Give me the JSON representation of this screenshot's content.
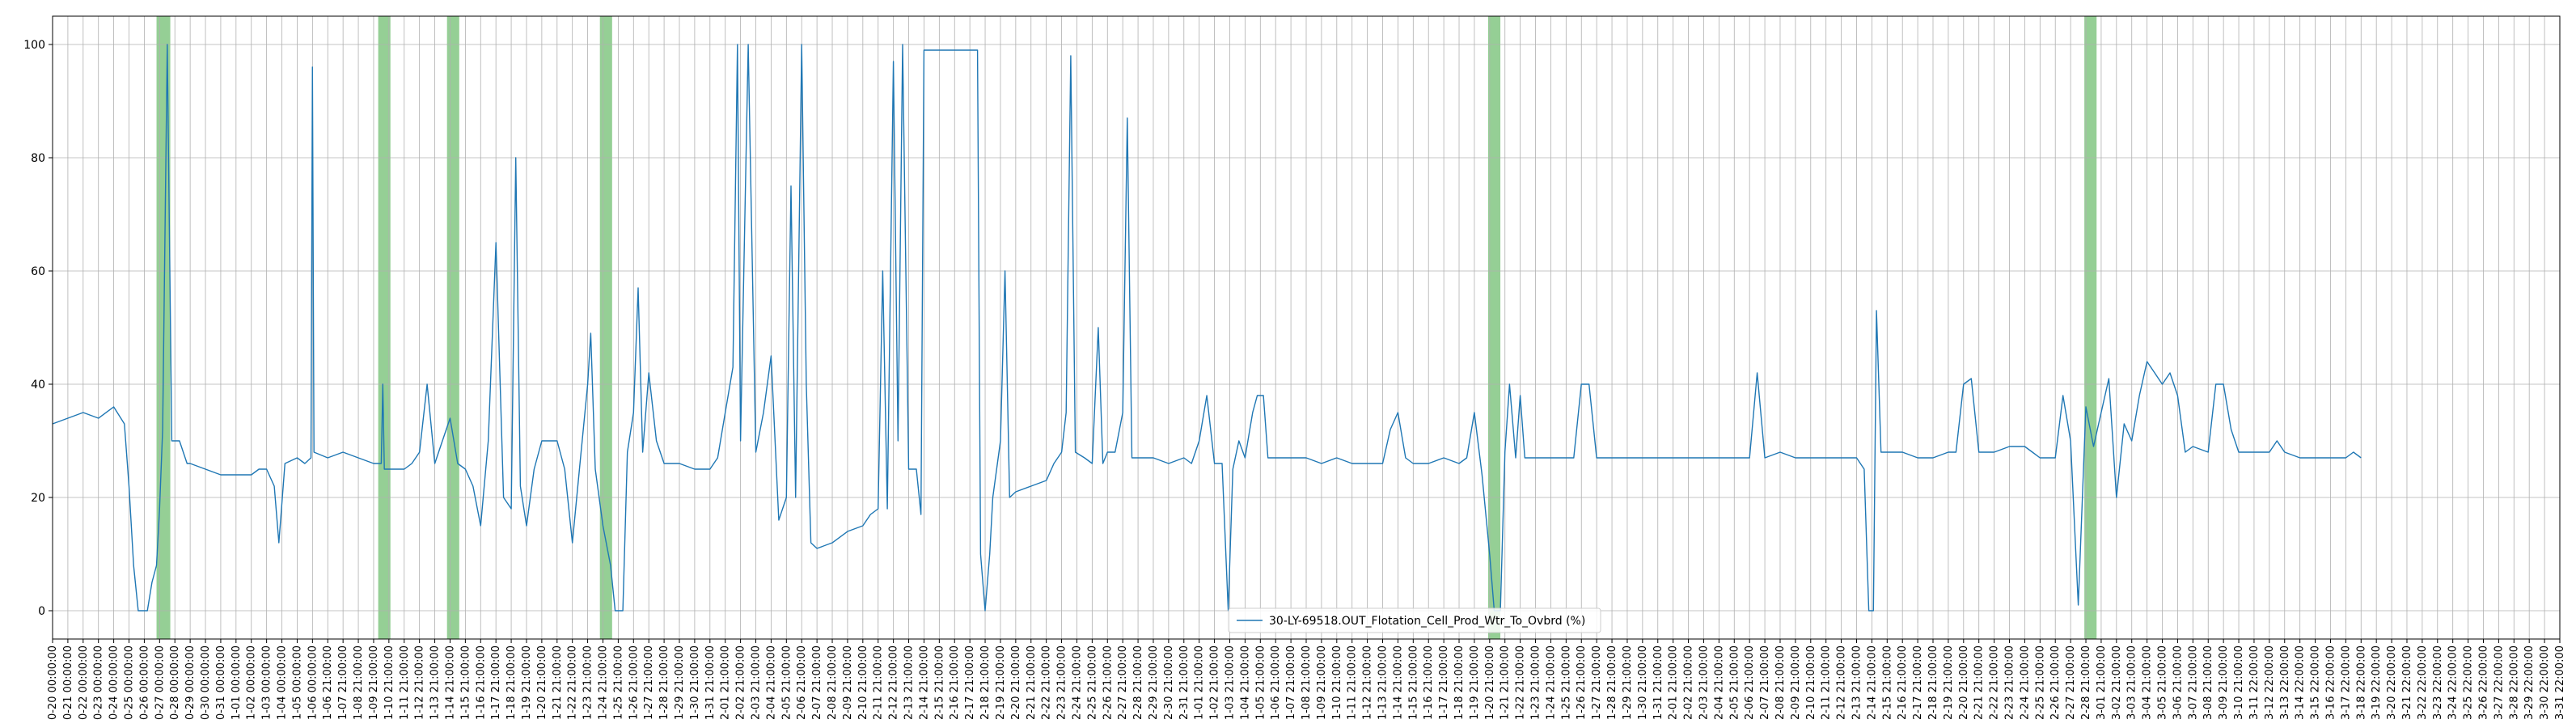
{
  "chart_data": {
    "type": "line",
    "title": "",
    "xlabel": "",
    "ylabel": "",
    "ylim": [
      -5,
      105
    ],
    "yticks": [
      0,
      20,
      40,
      60,
      80,
      100
    ],
    "grid": true,
    "legend_position": "lower-center",
    "colors": {
      "line": "#1f77b4",
      "highlight": "#2ca02c",
      "grid": "#b0b0b0"
    },
    "series": [
      {
        "name": "30-LY-69518.OUT_Flotation_Cell_Prod_Wtr_To_Ovbrd (%)",
        "points": [
          [
            0,
            33
          ],
          [
            1,
            34
          ],
          [
            2,
            35
          ],
          [
            3,
            34
          ],
          [
            4,
            36
          ],
          [
            4.7,
            33
          ],
          [
            5.0,
            22
          ],
          [
            5.3,
            8
          ],
          [
            5.6,
            0
          ],
          [
            6.2,
            0
          ],
          [
            6.5,
            5
          ],
          [
            6.8,
            8
          ],
          [
            7.0,
            18
          ],
          [
            7.2,
            32
          ],
          [
            7.5,
            100
          ],
          [
            7.8,
            30
          ],
          [
            8.3,
            30
          ],
          [
            8.8,
            26
          ],
          [
            9,
            26
          ],
          [
            10,
            25
          ],
          [
            11,
            24
          ],
          [
            12,
            24
          ],
          [
            13,
            24
          ],
          [
            13.5,
            25
          ],
          [
            14,
            25
          ],
          [
            14.5,
            22
          ],
          [
            14.8,
            12
          ],
          [
            15.2,
            26
          ],
          [
            16,
            27
          ],
          [
            16.5,
            26
          ],
          [
            16.9,
            27
          ],
          [
            17.0,
            96
          ],
          [
            17.1,
            28
          ],
          [
            18,
            27
          ],
          [
            19,
            28
          ],
          [
            20,
            27
          ],
          [
            21,
            26
          ],
          [
            21.5,
            26
          ],
          [
            21.6,
            40
          ],
          [
            21.7,
            25
          ],
          [
            22,
            25
          ],
          [
            23,
            25
          ],
          [
            23.5,
            26
          ],
          [
            24,
            28
          ],
          [
            24.5,
            40
          ],
          [
            25,
            26
          ],
          [
            25.5,
            30
          ],
          [
            26,
            34
          ],
          [
            26.5,
            26
          ],
          [
            27,
            25
          ],
          [
            27.5,
            22
          ],
          [
            28,
            15
          ],
          [
            28.5,
            30
          ],
          [
            29,
            65
          ],
          [
            29.5,
            20
          ],
          [
            30,
            18
          ],
          [
            30.3,
            80
          ],
          [
            30.6,
            22
          ],
          [
            31,
            15
          ],
          [
            31.5,
            25
          ],
          [
            32,
            30
          ],
          [
            33,
            30
          ],
          [
            33.5,
            25
          ],
          [
            34,
            12
          ],
          [
            34.5,
            26
          ],
          [
            35,
            40
          ],
          [
            35.2,
            49
          ],
          [
            35.5,
            25
          ],
          [
            36,
            15
          ],
          [
            36.5,
            8
          ],
          [
            36.8,
            0
          ],
          [
            37.3,
            0
          ],
          [
            37.6,
            28
          ],
          [
            38,
            35
          ],
          [
            38.3,
            57
          ],
          [
            38.6,
            28
          ],
          [
            39,
            42
          ],
          [
            39.5,
            30
          ],
          [
            40,
            26
          ],
          [
            41,
            26
          ],
          [
            42,
            25
          ],
          [
            43,
            25
          ],
          [
            43.5,
            27
          ],
          [
            44,
            35
          ],
          [
            44.5,
            43
          ],
          [
            44.8,
            100
          ],
          [
            45,
            30
          ],
          [
            45.5,
            100
          ],
          [
            46,
            28
          ],
          [
            46.5,
            35
          ],
          [
            47,
            45
          ],
          [
            47.5,
            16
          ],
          [
            48,
            20
          ],
          [
            48.3,
            75
          ],
          [
            48.6,
            20
          ],
          [
            49,
            100
          ],
          [
            49.3,
            40
          ],
          [
            49.6,
            12
          ],
          [
            50,
            11
          ],
          [
            51,
            12
          ],
          [
            52,
            14
          ],
          [
            53,
            15
          ],
          [
            53.5,
            17
          ],
          [
            54,
            18
          ],
          [
            54.3,
            60
          ],
          [
            54.6,
            18
          ],
          [
            55,
            97
          ],
          [
            55.3,
            30
          ],
          [
            55.6,
            100
          ],
          [
            56,
            25
          ],
          [
            56.5,
            25
          ],
          [
            56.8,
            17
          ],
          [
            57.0,
            99
          ],
          [
            60.0,
            99
          ],
          [
            60.5,
            99
          ],
          [
            60.7,
            10
          ],
          [
            61,
            0
          ],
          [
            61.3,
            10
          ],
          [
            61.5,
            20
          ],
          [
            62,
            30
          ],
          [
            62.3,
            60
          ],
          [
            62.6,
            20
          ],
          [
            63,
            21
          ],
          [
            64,
            22
          ],
          [
            65,
            23
          ],
          [
            65.5,
            26
          ],
          [
            66,
            28
          ],
          [
            66.3,
            35
          ],
          [
            66.6,
            98
          ],
          [
            66.9,
            28
          ],
          [
            67.5,
            27
          ],
          [
            68,
            26
          ],
          [
            68.4,
            50
          ],
          [
            68.7,
            26
          ],
          [
            69,
            28
          ],
          [
            69.5,
            28
          ],
          [
            70,
            35
          ],
          [
            70.3,
            87
          ],
          [
            70.6,
            27
          ],
          [
            71,
            27
          ],
          [
            72,
            27
          ],
          [
            73,
            26
          ],
          [
            74,
            27
          ],
          [
            74.5,
            26
          ],
          [
            75,
            30
          ],
          [
            75.5,
            38
          ],
          [
            76,
            26
          ],
          [
            76.5,
            26
          ],
          [
            76.9,
            0
          ],
          [
            77.2,
            25
          ],
          [
            77.6,
            30
          ],
          [
            78,
            27
          ],
          [
            78.5,
            35
          ],
          [
            78.8,
            38
          ],
          [
            79.2,
            38
          ],
          [
            79.5,
            27
          ],
          [
            80,
            27
          ],
          [
            81,
            27
          ],
          [
            82,
            27
          ],
          [
            83,
            26
          ],
          [
            84,
            27
          ],
          [
            85,
            26
          ],
          [
            86,
            26
          ],
          [
            87,
            26
          ],
          [
            87.5,
            32
          ],
          [
            88,
            35
          ],
          [
            88.5,
            27
          ],
          [
            89,
            26
          ],
          [
            90,
            26
          ],
          [
            91,
            27
          ],
          [
            92,
            26
          ],
          [
            92.5,
            27
          ],
          [
            93,
            35
          ],
          [
            93.5,
            24
          ],
          [
            94,
            10
          ],
          [
            94.3,
            0
          ],
          [
            94.7,
            0
          ],
          [
            95,
            28
          ],
          [
            95.3,
            40
          ],
          [
            95.7,
            27
          ],
          [
            96,
            38
          ],
          [
            96.3,
            27
          ],
          [
            97,
            27
          ],
          [
            98,
            27
          ],
          [
            99,
            27
          ],
          [
            99.5,
            27
          ],
          [
            100,
            40
          ],
          [
            100.5,
            40
          ],
          [
            101,
            27
          ],
          [
            102,
            27
          ],
          [
            103,
            27
          ],
          [
            104,
            27
          ],
          [
            105,
            27
          ],
          [
            106,
            27
          ],
          [
            107,
            27
          ],
          [
            108,
            27
          ],
          [
            109,
            27
          ],
          [
            110,
            27
          ],
          [
            111,
            27
          ],
          [
            111.5,
            42
          ],
          [
            112,
            27
          ],
          [
            113,
            28
          ],
          [
            114,
            27
          ],
          [
            115,
            27
          ],
          [
            116,
            27
          ],
          [
            117,
            27
          ],
          [
            118,
            27
          ],
          [
            118.5,
            25
          ],
          [
            118.8,
            0
          ],
          [
            119.1,
            0
          ],
          [
            119.3,
            53
          ],
          [
            119.6,
            28
          ],
          [
            120,
            28
          ],
          [
            121,
            28
          ],
          [
            122,
            27
          ],
          [
            123,
            27
          ],
          [
            124,
            28
          ],
          [
            124.5,
            28
          ],
          [
            125,
            40
          ],
          [
            125.5,
            41
          ],
          [
            126,
            28
          ],
          [
            127,
            28
          ],
          [
            128,
            29
          ],
          [
            129,
            29
          ],
          [
            129.5,
            28
          ],
          [
            130,
            27
          ],
          [
            131,
            27
          ],
          [
            131.5,
            38
          ],
          [
            132,
            30
          ],
          [
            132.5,
            1
          ],
          [
            133,
            36
          ],
          [
            133.5,
            29
          ],
          [
            134,
            35
          ],
          [
            134.5,
            41
          ],
          [
            135,
            20
          ],
          [
            135.5,
            33
          ],
          [
            136,
            30
          ],
          [
            136.5,
            38
          ],
          [
            137,
            44
          ],
          [
            137.5,
            42
          ],
          [
            138,
            40
          ],
          [
            138.5,
            42
          ],
          [
            139,
            38
          ],
          [
            139.5,
            28
          ],
          [
            140,
            29
          ],
          [
            141,
            28
          ],
          [
            141.5,
            40
          ],
          [
            142,
            40
          ],
          [
            142.5,
            32
          ],
          [
            143,
            28
          ],
          [
            144,
            28
          ],
          [
            145,
            28
          ],
          [
            145.5,
            30
          ],
          [
            146,
            28
          ],
          [
            147,
            27
          ],
          [
            148,
            27
          ],
          [
            149,
            27
          ],
          [
            150,
            27
          ],
          [
            150.5,
            28
          ],
          [
            151,
            27
          ]
        ]
      }
    ],
    "highlight_bands": [
      [
        6.8,
        7.7
      ],
      [
        21.3,
        22.1
      ],
      [
        25.8,
        26.6
      ],
      [
        35.8,
        36.6
      ],
      [
        93.9,
        94.7
      ],
      [
        132.9,
        133.7
      ]
    ],
    "xtick_labels": [
      "0-20 00:00:00",
      "0-21 00:00:00",
      "0-22 00:00:00",
      "0-23 00:00:00",
      "0-24 00:00:00",
      "0-25 00:00:00",
      "0-26 00:00:00",
      "0-27 00:00:00",
      "0-28 00:00:00",
      "0-29 00:00:00",
      "0-30 00:00:00",
      "0-31 00:00:00",
      "1-01 00:00:00",
      "1-02 00:00:00",
      "1-03 00:00:00",
      "1-04 00:00:00",
      "1-05 00:00:00",
      "1-06 00:00:00",
      "1-06 21:00:00",
      "1-07 21:00:00",
      "1-08 21:00:00",
      "1-09 21:00:00",
      "1-10 21:00:00",
      "1-11 21:00:00",
      "1-12 21:00:00",
      "1-13 21:00:00",
      "1-14 21:00:00",
      "1-15 21:00:00",
      "1-16 21:00:00",
      "1-17 21:00:00",
      "1-18 21:00:00",
      "1-19 21:00:00",
      "1-20 21:00:00",
      "1-21 21:00:00",
      "1-22 21:00:00",
      "1-23 21:00:00",
      "1-24 21:00:00",
      "1-25 21:00:00",
      "1-26 21:00:00",
      "1-27 21:00:00",
      "1-28 21:00:00",
      "1-29 21:00:00",
      "1-30 21:00:00",
      "1-31 21:00:00",
      "2-01 21:00:00",
      "2-02 21:00:00",
      "2-03 21:00:00",
      "2-04 21:00:00",
      "2-05 21:00:00",
      "2-06 21:00:00",
      "2-07 21:00:00",
      "2-08 21:00:00",
      "2-09 21:00:00",
      "2-10 21:00:00",
      "2-11 21:00:00",
      "2-12 21:00:00",
      "2-13 21:00:00",
      "2-14 21:00:00",
      "2-15 21:00:00",
      "2-16 21:00:00",
      "2-17 21:00:00",
      "2-18 21:00:00",
      "2-19 21:00:00",
      "2-20 21:00:00",
      "2-21 21:00:00",
      "2-22 21:00:00",
      "2-23 21:00:00",
      "2-24 21:00:00",
      "2-25 21:00:00",
      "2-26 21:00:00",
      "2-27 21:00:00",
      "2-28 21:00:00",
      "2-29 21:00:00",
      "2-30 21:00:00",
      "2-31 21:00:00",
      "1-01 21:00:00",
      "1-02 21:00:00",
      "1-03 21:00:00",
      "1-04 21:00:00",
      "1-05 21:00:00",
      "1-06 21:00:00",
      "1-07 21:00:00",
      "1-08 21:00:00",
      "1-09 21:00:00",
      "1-10 21:00:00",
      "1-11 21:00:00",
      "1-12 21:00:00",
      "1-13 21:00:00",
      "1-14 21:00:00",
      "1-15 21:00:00",
      "1-16 21:00:00",
      "1-17 21:00:00",
      "1-18 21:00:00",
      "1-19 21:00:00",
      "1-20 21:00:00",
      "1-21 21:00:00",
      "1-22 21:00:00",
      "1-23 21:00:00",
      "1-24 21:00:00",
      "1-25 21:00:00",
      "1-26 21:00:00",
      "1-27 21:00:00",
      "1-28 21:00:00",
      "1-29 21:00:00",
      "1-30 21:00:00",
      "1-31 21:00:00",
      "2-01 21:00:00",
      "2-02 21:00:00",
      "2-03 21:00:00",
      "2-04 21:00:00",
      "2-05 21:00:00",
      "2-06 21:00:00",
      "2-07 21:00:00",
      "2-08 21:00:00",
      "2-09 21:00:00",
      "2-10 21:00:00",
      "2-11 21:00:00",
      "2-12 21:00:00",
      "2-13 21:00:00",
      "2-14 21:00:00",
      "2-15 21:00:00",
      "2-16 21:00:00",
      "2-17 21:00:00",
      "2-18 21:00:00",
      "2-19 21:00:00",
      "2-20 21:00:00",
      "2-21 21:00:00",
      "2-22 21:00:00",
      "2-23 21:00:00",
      "2-24 21:00:00",
      "2-25 21:00:00",
      "2-26 21:00:00",
      "2-27 21:00:00",
      "2-28 21:00:00",
      "3-01 21:00:00",
      "3-02 21:00:00",
      "3-03 21:00:00",
      "3-04 21:00:00",
      "3-05 21:00:00",
      "3-06 21:00:00",
      "3-07 21:00:00",
      "3-08 21:00:00",
      "3-09 21:00:00",
      "3-10 21:00:00",
      "3-11 22:00:00",
      "3-12 22:00:00",
      "3-13 22:00:00",
      "3-14 22:00:00",
      "3-15 22:00:00",
      "3-16 22:00:00",
      "3-17 22:00:00",
      "3-18 22:00:00",
      "3-19 22:00:00",
      "3-20 22:00:00",
      "3-21 22:00:00",
      "3-22 22:00:00",
      "3-23 22:00:00",
      "3-24 22:00:00",
      "3-25 22:00:00",
      "3-26 22:00:00",
      "3-27 22:00:00",
      "3-28 22:00:00",
      "3-29 22:00:00",
      "3-30 22:00:00",
      "3-31 22:00:00"
    ]
  }
}
